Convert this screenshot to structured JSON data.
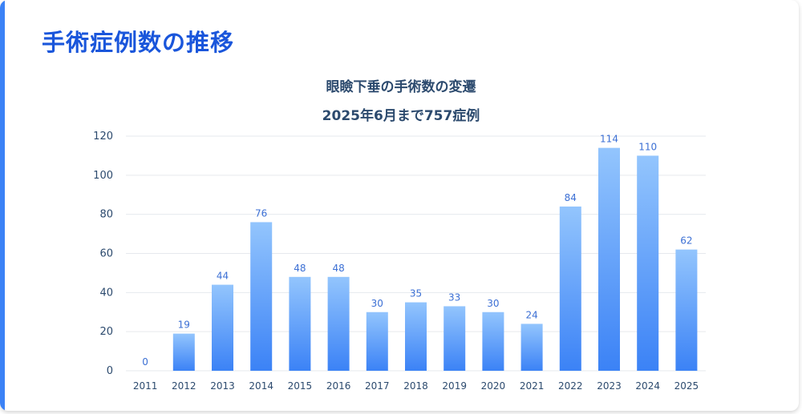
{
  "page": {
    "title": "手術症例数の推移"
  },
  "chart_data": {
    "type": "bar",
    "title": "眼瞼下垂の手術数の変遷",
    "subtitle": "2025年6月まで757症例",
    "categories": [
      "2011",
      "2012",
      "2013",
      "2014",
      "2015",
      "2016",
      "2017",
      "2018",
      "2019",
      "2020",
      "2021",
      "2022",
      "2023",
      "2024",
      "2025"
    ],
    "values": [
      0,
      19,
      44,
      76,
      48,
      48,
      30,
      35,
      33,
      30,
      24,
      84,
      114,
      110,
      62
    ],
    "ylim": [
      0,
      120
    ],
    "yticks": [
      0,
      20,
      40,
      60,
      80,
      100,
      120
    ],
    "grid": true,
    "xlabel": "",
    "ylabel": "",
    "colors": {
      "bar_top": "#93c5fd",
      "bar_bottom": "#3b82f6",
      "grid": "#e6e9ee"
    }
  }
}
